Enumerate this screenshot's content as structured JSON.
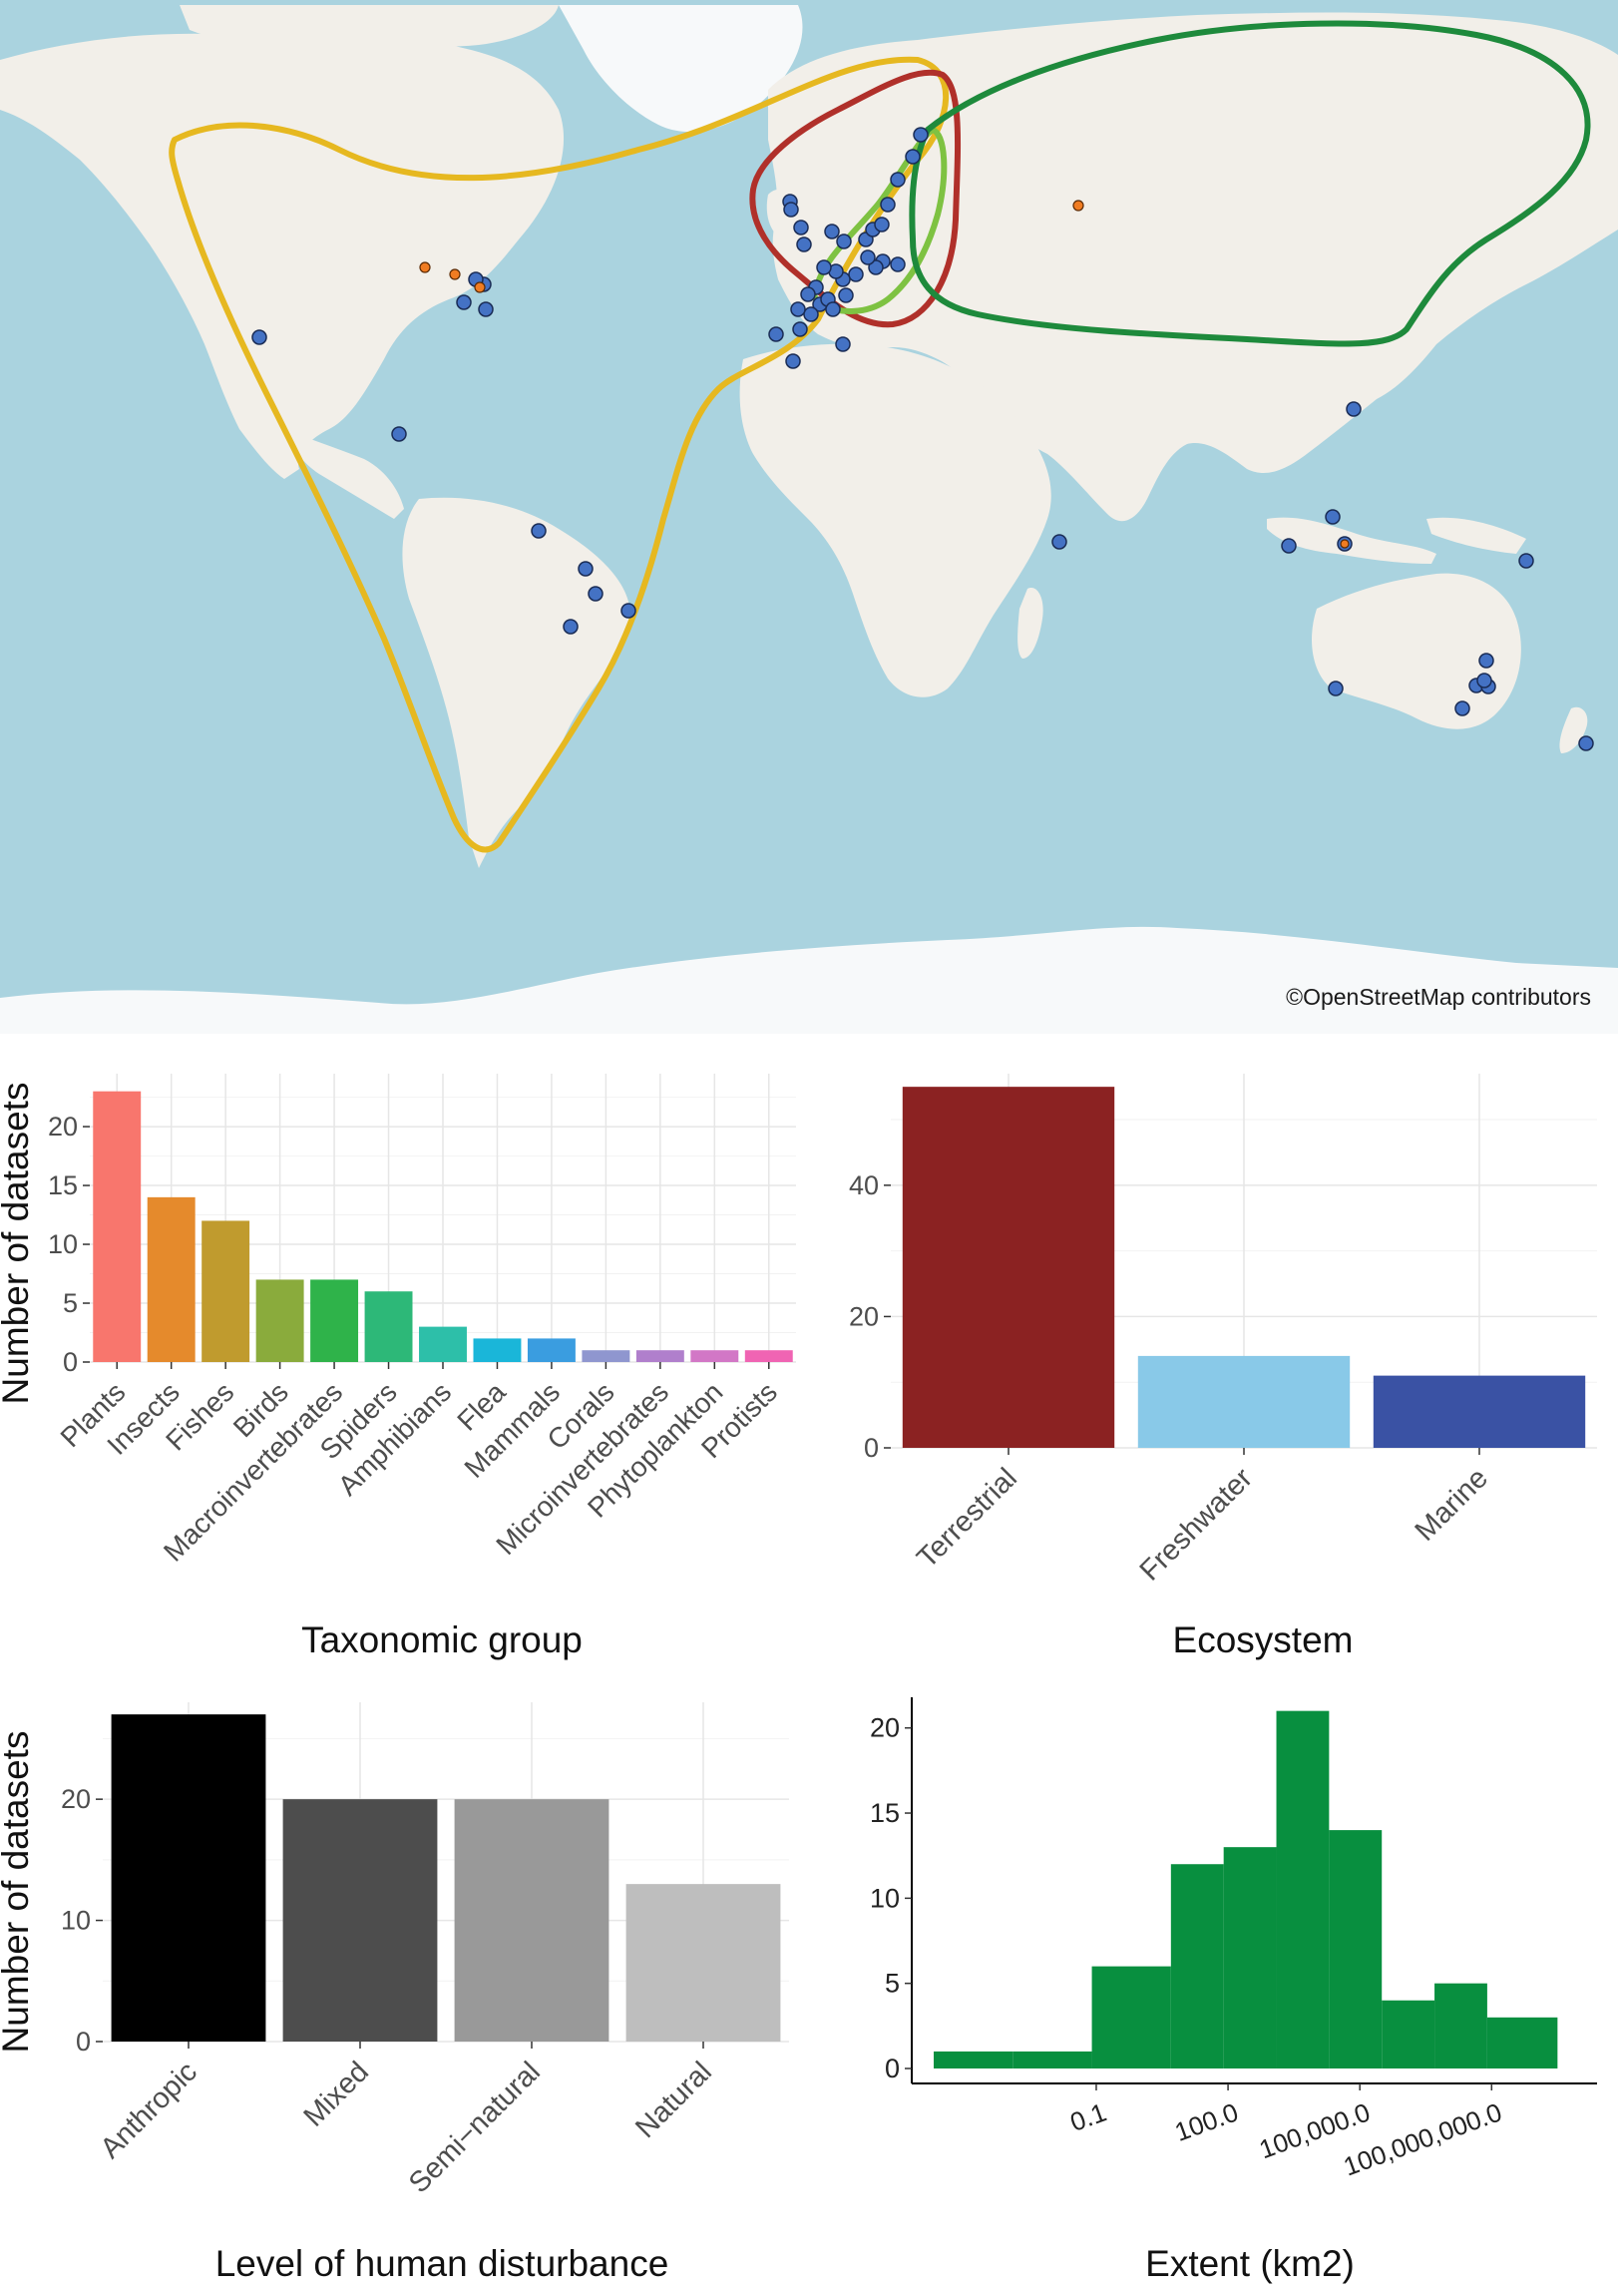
{
  "map": {
    "attribution": "©OpenStreetMap contributors",
    "colors": {
      "ocean": "#aad3df",
      "land": "#f2efe9",
      "ice": "#f7f9fa",
      "site_blue": "#4472c4",
      "site_orange": "#f07c22",
      "outline_yellow": "#e6b820",
      "outline_red": "#b0302a",
      "outline_lightgreen": "#7ec242",
      "outline_darkgreen": "#1e8a3c"
    }
  },
  "chart_data": [
    {
      "id": "taxon",
      "type": "bar",
      "xlabel": "Taxonomic group",
      "ylabel": "Number of datasets",
      "categories": [
        "Plants",
        "Insects",
        "Fishes",
        "Birds",
        "Macroinvertebrates",
        "Spiders",
        "Amphibians",
        "Flea",
        "Mammals",
        "Corals",
        "Microinvertebrates",
        "Phytoplankton",
        "Protists"
      ],
      "values": [
        23,
        14,
        12,
        7,
        7,
        6,
        3,
        2,
        2,
        1,
        1,
        1,
        1
      ],
      "colors": [
        "#f8766d",
        "#e58a2c",
        "#c09b2e",
        "#8aab3c",
        "#2fb34a",
        "#2db878",
        "#2dbfa9",
        "#1ab6d9",
        "#3a9de0",
        "#8f96cf",
        "#b07fcc",
        "#d277c6",
        "#f064b3"
      ],
      "ylim": [
        0,
        24.5
      ],
      "yticks": [
        0,
        5,
        10,
        15,
        20
      ],
      "grid": true
    },
    {
      "id": "eco",
      "type": "bar",
      "xlabel": "Ecosystem",
      "ylabel": "",
      "categories": [
        "Terrestrial",
        "Freshwater",
        "Marine"
      ],
      "values": [
        55,
        14,
        11
      ],
      "colors": [
        "#8b2222",
        "#89c9e8",
        "#3a52a4"
      ],
      "ylim": [
        0,
        57
      ],
      "yticks": [
        0,
        20,
        40
      ],
      "grid": true
    },
    {
      "id": "dist",
      "type": "bar",
      "xlabel": "Level of human disturbance",
      "ylabel": "Number of datasets",
      "categories": [
        "Anthropic",
        "Mixed",
        "Semi−natural",
        "Natural"
      ],
      "values": [
        27,
        20,
        20,
        13
      ],
      "colors": [
        "#000000",
        "#4d4d4d",
        "#999999",
        "#bebebe"
      ],
      "ylim": [
        0,
        28
      ],
      "yticks": [
        0,
        10,
        20
      ],
      "grid": true
    },
    {
      "id": "extent",
      "type": "histogram",
      "xlabel": "Extent (km2)",
      "ylabel": "",
      "log10_bins": [
        [
          -4.7,
          -2.9,
          1
        ],
        [
          -2.9,
          -1.1,
          1
        ],
        [
          -1.1,
          0.7,
          6
        ],
        [
          0.7,
          1.9,
          12
        ],
        [
          1.9,
          3.1,
          13
        ],
        [
          3.1,
          4.3,
          21
        ],
        [
          4.3,
          5.5,
          14
        ],
        [
          5.5,
          6.7,
          4
        ],
        [
          6.7,
          7.9,
          5
        ],
        [
          7.9,
          9.5,
          3
        ]
      ],
      "xticks": [
        {
          "log10": -1,
          "label": "0.1"
        },
        {
          "log10": 2,
          "label": "100.0"
        },
        {
          "log10": 5,
          "label": "100,000.0"
        },
        {
          "log10": 8,
          "label": "100,000,000.0"
        }
      ],
      "xlim_log10": [
        -5.2,
        10.4
      ],
      "yticks": [
        0,
        5,
        10,
        15,
        20
      ],
      "ylim": [
        0,
        21.8
      ],
      "color": "#088f3f",
      "grid": false
    }
  ]
}
